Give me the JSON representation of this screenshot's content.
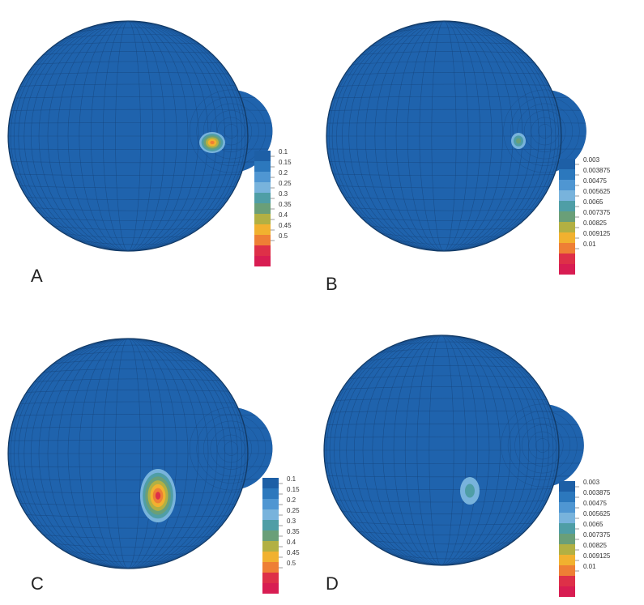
{
  "panels": [
    {
      "label": "A",
      "colorbar": [
        "0.1",
        "0.15",
        "0.2",
        "0.25",
        "0.3",
        "0.35",
        "0.4",
        "0.45",
        "0.5"
      ]
    },
    {
      "label": "B",
      "colorbar": [
        "0.003",
        "0.003875",
        "0.00475",
        "0.005625",
        "0.0065",
        "0.007375",
        "0.00825",
        "0.009125",
        "0.01"
      ]
    },
    {
      "label": "C",
      "colorbar": [
        "0.1",
        "0.15",
        "0.2",
        "0.25",
        "0.3",
        "0.35",
        "0.4",
        "0.45",
        "0.5"
      ]
    },
    {
      "label": "D",
      "colorbar": [
        "0.003",
        "0.003875",
        "0.00475",
        "0.005625",
        "0.0065",
        "0.007375",
        "0.00825",
        "0.009125",
        "0.01"
      ]
    }
  ],
  "colorbar_colors": [
    "#1d5fa6",
    "#2c78bd",
    "#4f96d2",
    "#78b3dc",
    "#4f9ea6",
    "#6a9f78",
    "#b2b043",
    "#f1b12f",
    "#ee7f35",
    "#de3048",
    "#d81d52"
  ]
}
